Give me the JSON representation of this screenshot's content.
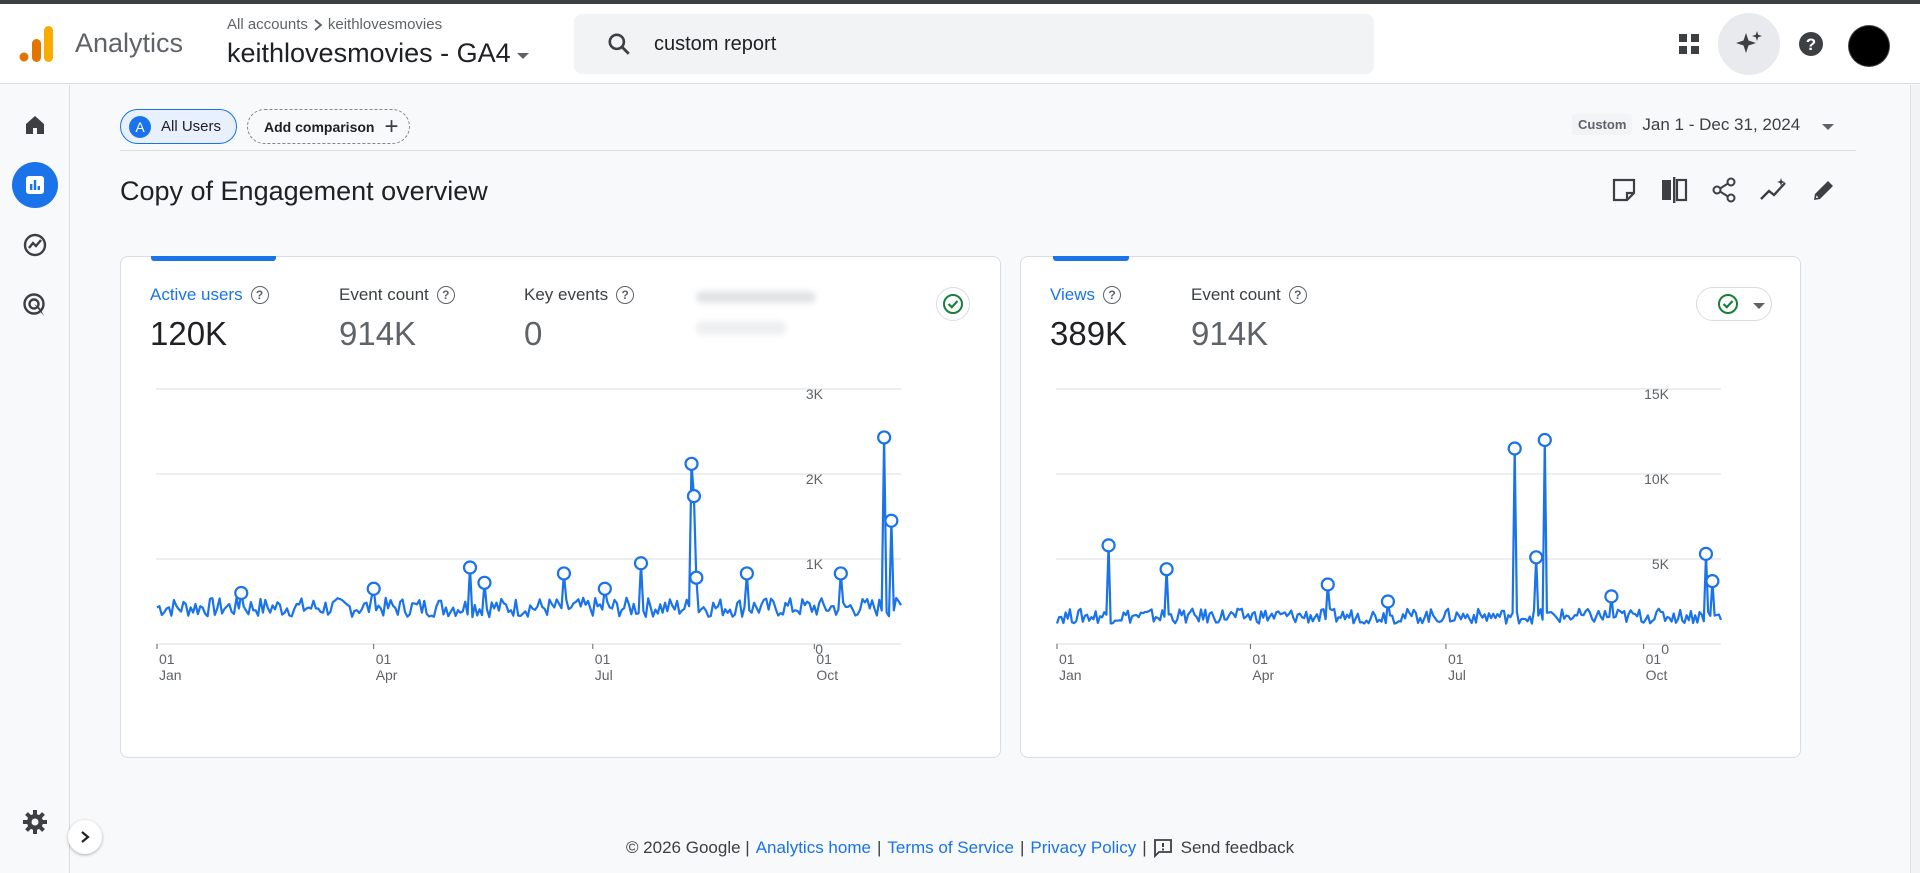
{
  "header": {
    "app_name": "Analytics",
    "breadcrumb_root": "All accounts",
    "breadcrumb_account": "keithlovesmovies",
    "property_name": "keithlovesmovies - GA4",
    "search_value": "custom report"
  },
  "toolbar": {
    "segment_badge": "A",
    "segment_label": "All Users",
    "add_comparison_label": "Add comparison",
    "date_tag": "Custom",
    "date_range": "Jan 1 - Dec 31, 2024"
  },
  "page": {
    "title": "Copy of Engagement overview"
  },
  "card_left": {
    "metrics": [
      {
        "label": "Active users",
        "value": "120K"
      },
      {
        "label": "Event count",
        "value": "914K"
      },
      {
        "label": "Key events",
        "value": "0"
      }
    ]
  },
  "card_right": {
    "metrics": [
      {
        "label": "Views",
        "value": "389K"
      },
      {
        "label": "Event count",
        "value": "914K"
      }
    ]
  },
  "chart_data": [
    {
      "type": "line",
      "series": [
        {
          "name": "Active users",
          "color": "#1a73e8"
        }
      ],
      "x_ticks": [
        {
          "day": "01",
          "month": "Jan"
        },
        {
          "day": "01",
          "month": "Apr"
        },
        {
          "day": "01",
          "month": "Jul"
        },
        {
          "day": "01",
          "month": "Oct"
        }
      ],
      "y_ticks": [
        "3K",
        "2K",
        "1K",
        "0"
      ],
      "ylim": [
        0,
        3000
      ],
      "baseline": 420,
      "spikes": [
        {
          "day": 35,
          "value": 600
        },
        {
          "day": 90,
          "value": 650
        },
        {
          "day": 130,
          "value": 900
        },
        {
          "day": 136,
          "value": 720
        },
        {
          "day": 169,
          "value": 830
        },
        {
          "day": 186,
          "value": 650
        },
        {
          "day": 201,
          "value": 950
        },
        {
          "day": 222,
          "value": 2120
        },
        {
          "day": 223,
          "value": 1740
        },
        {
          "day": 224,
          "value": 780
        },
        {
          "day": 245,
          "value": 830
        },
        {
          "day": 284,
          "value": 830
        },
        {
          "day": 302,
          "value": 2430
        },
        {
          "day": 305,
          "value": 1450
        }
      ]
    },
    {
      "type": "line",
      "series": [
        {
          "name": "Views",
          "color": "#1a73e8"
        }
      ],
      "x_ticks": [
        {
          "day": "01",
          "month": "Jan"
        },
        {
          "day": "01",
          "month": "Apr"
        },
        {
          "day": "01",
          "month": "Jul"
        },
        {
          "day": "01",
          "month": "Oct"
        }
      ],
      "y_ticks": [
        "15K",
        "10K",
        "5K",
        "0"
      ],
      "ylim": [
        0,
        15000
      ],
      "baseline": 1600,
      "spikes": [
        {
          "day": 24,
          "value": 5800
        },
        {
          "day": 51,
          "value": 4400
        },
        {
          "day": 126,
          "value": 3500
        },
        {
          "day": 154,
          "value": 2500
        },
        {
          "day": 213,
          "value": 11500
        },
        {
          "day": 223,
          "value": 5100
        },
        {
          "day": 227,
          "value": 12000
        },
        {
          "day": 258,
          "value": 2800
        },
        {
          "day": 302,
          "value": 5300
        },
        {
          "day": 305,
          "value": 3700
        }
      ]
    }
  ],
  "footer": {
    "copyright": "© 2026 Google |",
    "analytics_home": "Analytics home",
    "terms": "Terms of Service",
    "privacy": "Privacy Policy",
    "feedback": "Send feedback"
  }
}
